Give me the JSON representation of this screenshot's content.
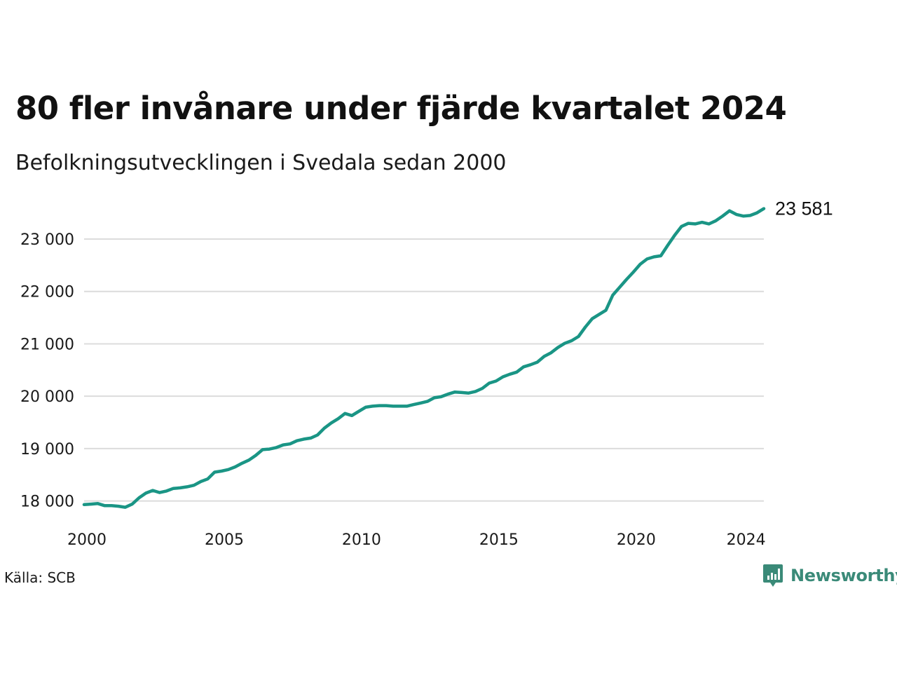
{
  "title": "80 fler invånare under fjärde kvartalet 2024",
  "subtitle": "Befolkningsutvecklingen i Svedala sedan 2000",
  "source": "Källa: SCB",
  "brand": {
    "name": "Newsworthy",
    "icon": "newsworthy-logo-icon",
    "color": "#3a8a78"
  },
  "colors": {
    "line": "#1a9585",
    "grid": "#dcdcdc"
  },
  "chart_data": {
    "type": "line",
    "title": "80 fler invånare under fjärde kvartalet 2024",
    "subtitle": "Befolkningsutvecklingen i Svedala sedan 2000",
    "xlabel": "",
    "ylabel": "",
    "xlim": [
      2000,
      2024.75
    ],
    "ylim": [
      17700,
      23750
    ],
    "x_ticks": [
      2000,
      2005,
      2010,
      2015,
      2020,
      2024
    ],
    "x_tick_labels": [
      "2000",
      "2005",
      "2010",
      "2015",
      "2020",
      "2024"
    ],
    "y_ticks": [
      18000,
      19000,
      20000,
      21000,
      22000,
      23000
    ],
    "y_tick_labels": [
      "18 000",
      "19 000",
      "20 000",
      "21 000",
      "22 000",
      "23 000"
    ],
    "grid": "horizontal",
    "end_label": "23 581",
    "series": [
      {
        "x": [
          2000.0,
          2000.25,
          2000.5,
          2000.75,
          2001.0,
          2001.25,
          2001.5,
          2001.75,
          2002.0,
          2002.25,
          2002.5,
          2002.75,
          2003.0,
          2003.25,
          2003.5,
          2003.75,
          2004.0,
          2004.25,
          2004.5,
          2004.75,
          2005.0,
          2005.25,
          2005.5,
          2005.75,
          2006.0,
          2006.25,
          2006.5,
          2006.75,
          2007.0,
          2007.25,
          2007.5,
          2007.75,
          2008.0,
          2008.25,
          2008.5,
          2008.75,
          2009.0,
          2009.25,
          2009.5,
          2009.75,
          2010.0,
          2010.25,
          2010.5,
          2010.75,
          2011.0,
          2011.25,
          2011.5,
          2011.75,
          2012.0,
          2012.25,
          2012.5,
          2012.75,
          2013.0,
          2013.25,
          2013.5,
          2013.75,
          2014.0,
          2014.25,
          2014.5,
          2014.75,
          2015.0,
          2015.25,
          2015.5,
          2015.75,
          2016.0,
          2016.25,
          2016.5,
          2016.75,
          2017.0,
          2017.25,
          2017.5,
          2017.75,
          2018.0,
          2018.25,
          2018.5,
          2018.75,
          2019.0,
          2019.25,
          2019.5,
          2019.75,
          2020.0,
          2020.25,
          2020.5,
          2020.75,
          2021.0,
          2021.25,
          2021.5,
          2021.75,
          2022.0,
          2022.25,
          2022.5,
          2022.75,
          2023.0,
          2023.25,
          2023.5,
          2023.75,
          2024.0,
          2024.25,
          2024.5,
          2024.75
        ],
        "y": [
          17930,
          17940,
          17950,
          17910,
          17910,
          17900,
          17880,
          17940,
          18060,
          18150,
          18200,
          18160,
          18190,
          18240,
          18250,
          18270,
          18300,
          18370,
          18420,
          18550,
          18570,
          18600,
          18650,
          18720,
          18780,
          18870,
          18980,
          18990,
          19020,
          19070,
          19090,
          19150,
          19180,
          19200,
          19260,
          19390,
          19490,
          19570,
          19670,
          19630,
          19710,
          19790,
          19810,
          19820,
          19820,
          19810,
          19810,
          19810,
          19840,
          19870,
          19900,
          19970,
          19990,
          20040,
          20080,
          20070,
          20060,
          20090,
          20150,
          20250,
          20290,
          20370,
          20420,
          20460,
          20560,
          20600,
          20650,
          20760,
          20830,
          20930,
          21010,
          21060,
          21140,
          21320,
          21480,
          21560,
          21640,
          21930,
          22080,
          22230,
          22370,
          22520,
          22620,
          22660,
          22680,
          22880,
          23070,
          23240,
          23300,
          23290,
          23320,
          23290,
          23350,
          23440,
          23540,
          23470,
          23440,
          23450,
          23501,
          23581
        ]
      }
    ]
  }
}
